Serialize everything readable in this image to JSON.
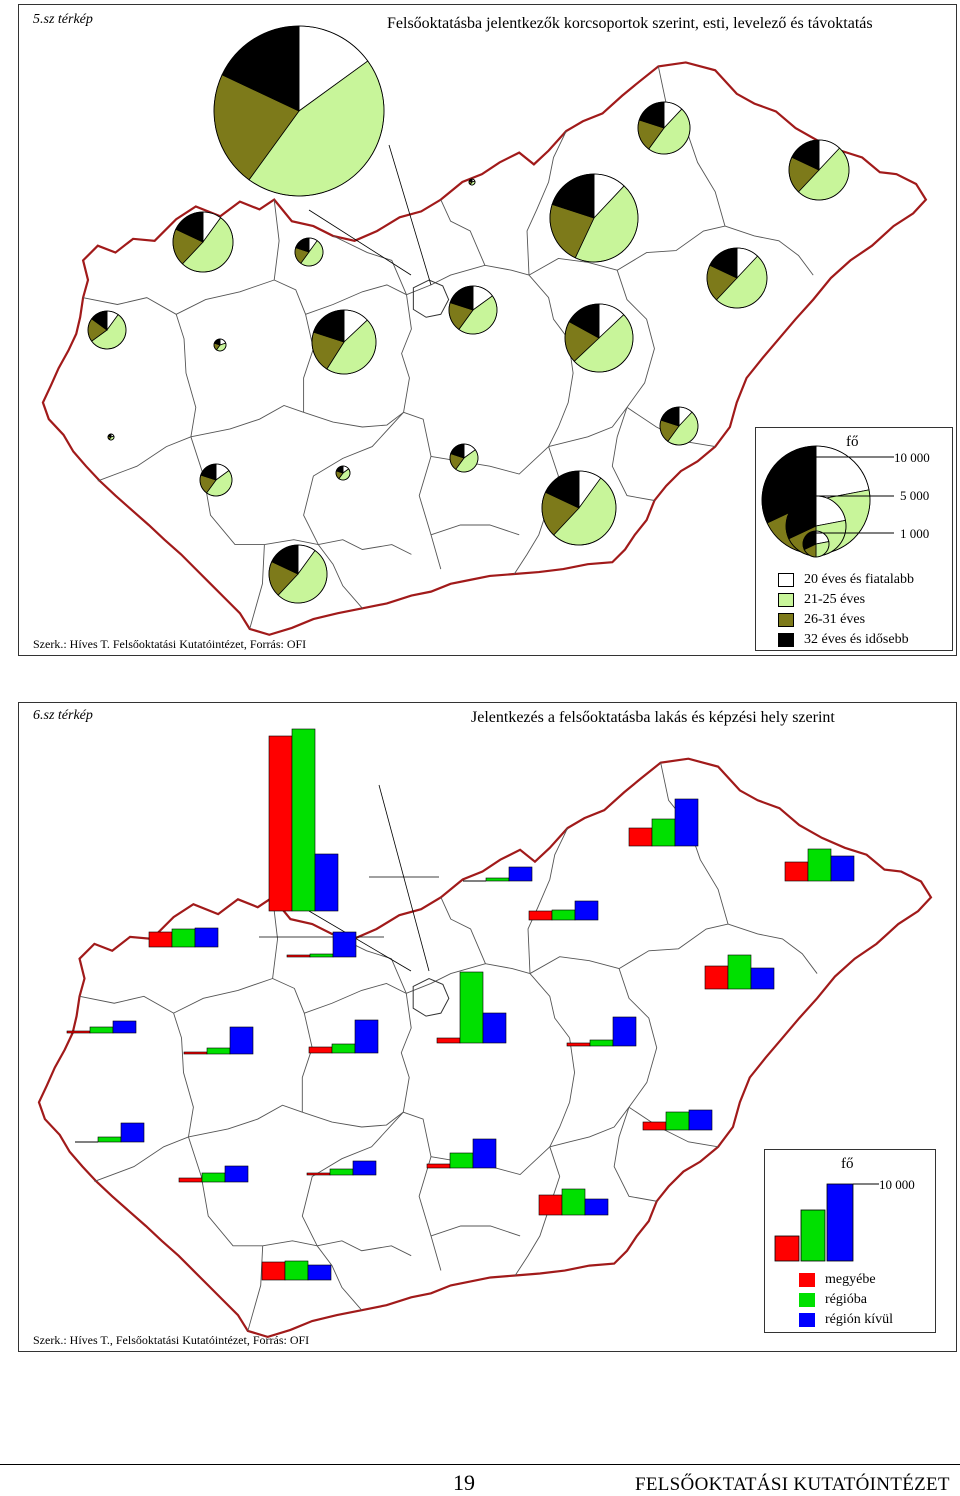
{
  "map1": {
    "label": "5.sz térkép",
    "title": "Felsőoktatásba jelentkezők korcsoportok szerint, esti, levelező és távoktatás",
    "credit": "Szerk.: Híves T. Felsőoktatási Kutatóintézet, Forrás: OFI",
    "legend": {
      "unit": "fő",
      "scale_values": [
        "10 000",
        "5 000",
        "1 000"
      ],
      "categories": [
        {
          "label": "20 éves és fiatalabb",
          "color": "#ffffff"
        },
        {
          "label": "21-25 éves",
          "color": "#c8f59a"
        },
        {
          "label": "26-31 éves",
          "color": "#7d7a1a"
        },
        {
          "label": "32 éves és idősebb",
          "color": "#000000"
        }
      ]
    }
  },
  "map2": {
    "label": "6.sz térkép",
    "title": "Jelentkezés a felsőoktatásba lakás és képzési hely szerint",
    "credit": "Szerk.: Híves T., Felsőoktatási Kutatóintézet, Forrás: OFI",
    "legend": {
      "unit": "fő",
      "scale_value": "10 000",
      "categories": [
        {
          "label": "megyébe",
          "color": "#ff0000"
        },
        {
          "label": "régióba",
          "color": "#00e000"
        },
        {
          "label": "régión kívül",
          "color": "#0000ff"
        }
      ]
    }
  },
  "footer": {
    "page_number": "19",
    "text": "FELSŐOKTATÁSI KUTATÓINTÉZET"
  }
}
